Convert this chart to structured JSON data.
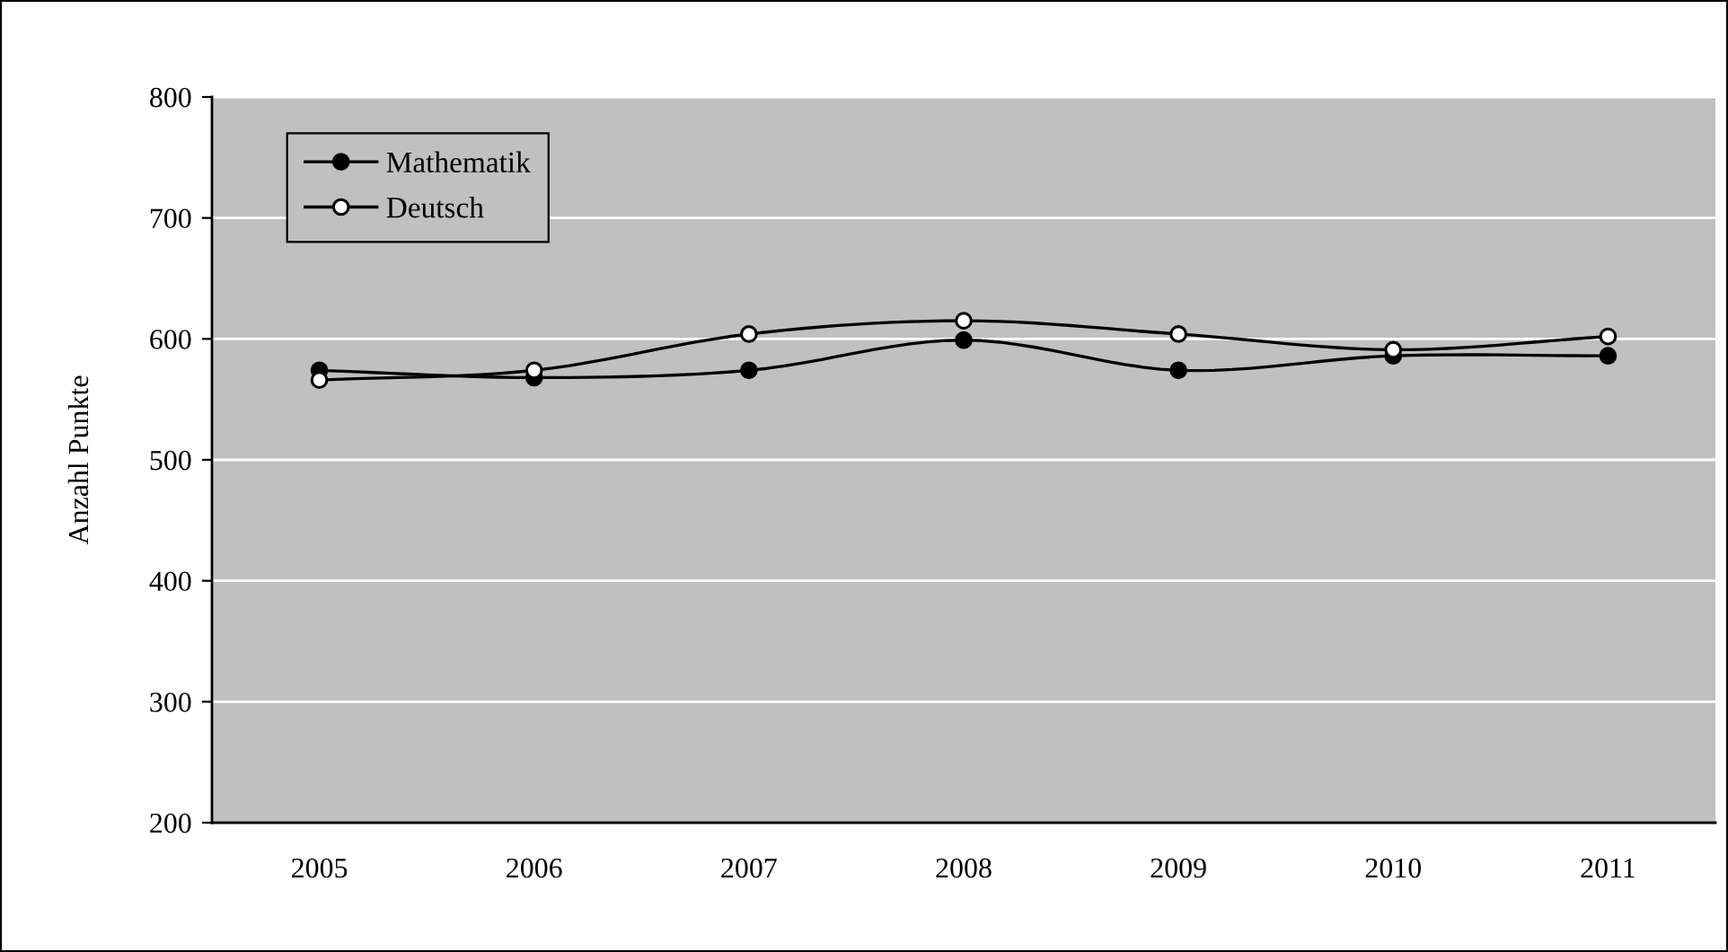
{
  "chart_data": {
    "type": "line",
    "ylabel": "Anzahl Punkte",
    "categories": [
      "2005",
      "2006",
      "2007",
      "2008",
      "2009",
      "2010",
      "2011"
    ],
    "series": [
      {
        "name": "Mathematik",
        "color": "#000000",
        "values": [
          574,
          568,
          574,
          599,
          574,
          586,
          586
        ]
      },
      {
        "name": "Deutsch",
        "color": "#000000",
        "values": [
          566,
          574,
          604,
          615,
          604,
          591,
          602
        ]
      }
    ],
    "ylim": [
      200,
      800
    ],
    "yticks": [
      200,
      300,
      400,
      500,
      600,
      700,
      800
    ],
    "grid": "y",
    "legend": "top left",
    "marker": "circle",
    "line_style": "solid"
  }
}
